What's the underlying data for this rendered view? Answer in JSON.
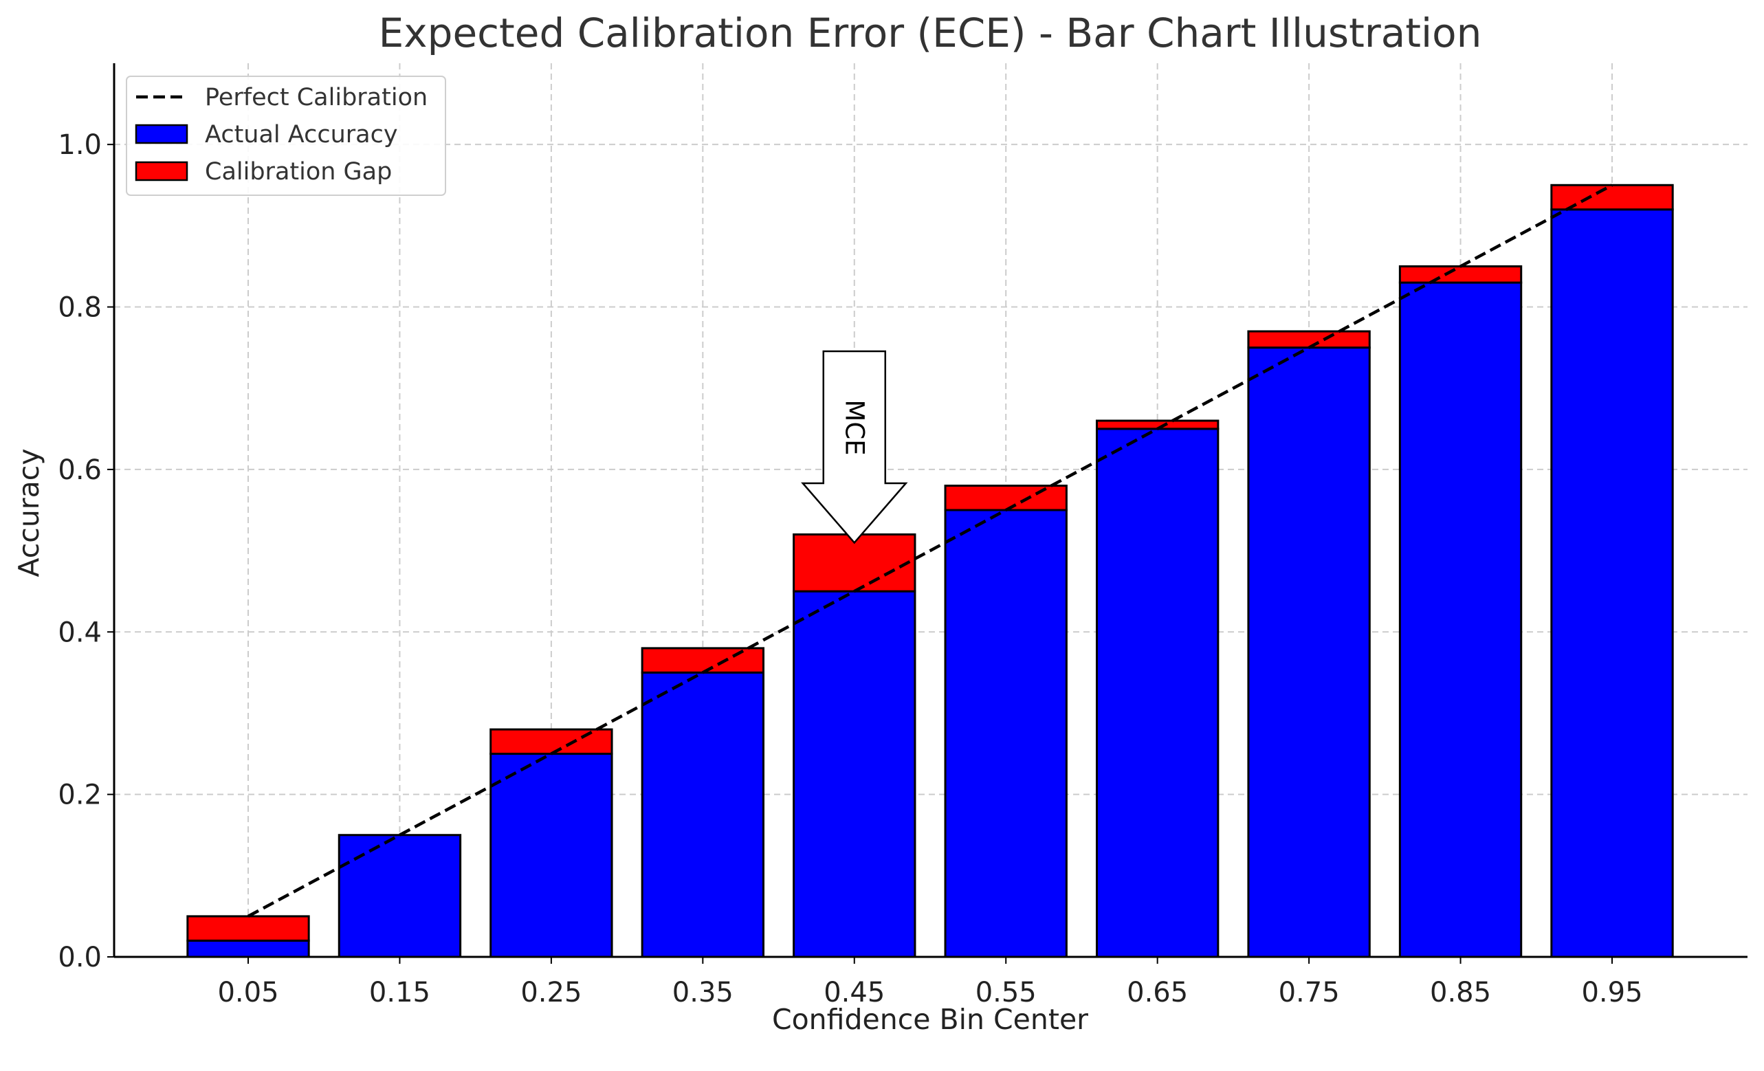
{
  "chart_data": {
    "type": "bar",
    "title": "Expected Calibration Error (ECE) - Bar Chart Illustration",
    "xlabel": "Confidence Bin Center",
    "ylabel": "Accuracy",
    "categories": [
      "0.05",
      "0.15",
      "0.25",
      "0.35",
      "0.45",
      "0.55",
      "0.65",
      "0.75",
      "0.85",
      "0.95"
    ],
    "x": [
      0.05,
      0.15,
      0.25,
      0.35,
      0.45,
      0.55,
      0.65,
      0.75,
      0.85,
      0.95
    ],
    "series": [
      {
        "name": "Actual Accuracy",
        "color": "#0000ff",
        "values": [
          0.02,
          0.15,
          0.25,
          0.35,
          0.45,
          0.55,
          0.65,
          0.75,
          0.83,
          0.92
        ]
      },
      {
        "name": "Calibration Gap",
        "color": "#ff0000",
        "values": [
          0.03,
          0.0,
          0.03,
          0.03,
          0.07,
          0.03,
          0.01,
          0.02,
          0.02,
          0.03
        ]
      }
    ],
    "reference_line": {
      "name": "Perfect Calibration",
      "style": "dashed",
      "color": "#000000",
      "points": [
        [
          0.05,
          0.05
        ],
        [
          0.95,
          0.95
        ]
      ]
    },
    "annotation": {
      "text": "MCE",
      "target_x": 0.45,
      "target_y": 0.52
    },
    "ylim": [
      0.0,
      1.1
    ],
    "yticks": [
      "0.0",
      "0.2",
      "0.4",
      "0.6",
      "0.8",
      "1.0"
    ],
    "ytick_values": [
      0.0,
      0.2,
      0.4,
      0.6,
      0.8,
      1.0
    ],
    "grid": true,
    "legend_position": "top-left"
  }
}
